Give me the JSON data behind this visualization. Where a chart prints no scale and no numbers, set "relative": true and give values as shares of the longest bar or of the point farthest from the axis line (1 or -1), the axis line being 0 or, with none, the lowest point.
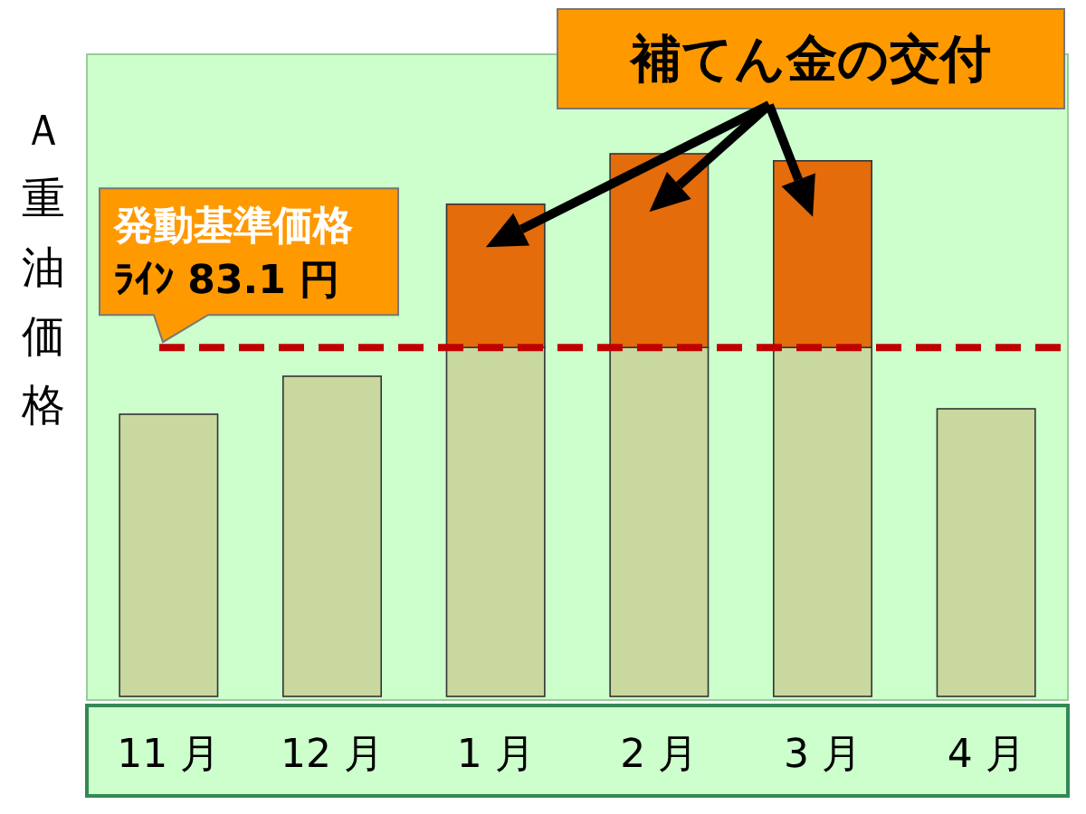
{
  "chart_data": {
    "type": "bar",
    "relative": true,
    "stacked": true,
    "legend": false,
    "grid": false,
    "ylabel": "Ａ重油価格",
    "categories": [
      "11 月",
      "12 月",
      "1 月",
      "2 月",
      "3 月",
      "4 月"
    ],
    "series": [
      {
        "color": "#c9d89e",
        "values": [
          0.52,
          0.59,
          0.643,
          0.643,
          0.643,
          0.53
        ]
      },
      {
        "color": "#e46c0a",
        "values": [
          null,
          null,
          0.264,
          0.357,
          0.344,
          null
        ]
      }
    ],
    "ref_lines": [
      {
        "axis": "y",
        "value": 0.643,
        "label": "発動基準価格ﾗｲﾝ 83.1 円",
        "color": "#c00000",
        "line_style": "dashed"
      }
    ],
    "annotations": [
      "補てん金の交付"
    ]
  }
}
